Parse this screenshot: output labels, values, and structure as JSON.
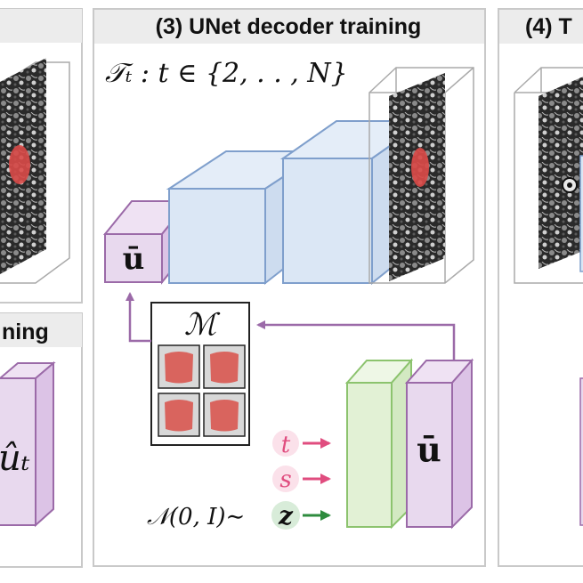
{
  "panels": {
    "left_bottom_header": "ning",
    "center_header": "(3) UNet decoder training",
    "right_header": "(4) T"
  },
  "math": {
    "task_set": "𝒯ₜ : t ∈ {2, . . , N}",
    "u_bar": "ū",
    "memory": "ℳ",
    "u_hat": "ûₜ",
    "t": "t",
    "s": "s",
    "z": "z",
    "noise": "𝒩(0, I)∼"
  },
  "colors": {
    "blue_face": "#dbe7f5",
    "blue_edge": "#7f9fcc",
    "purple_face": "#e8d9ee",
    "purple_edge": "#9b6aa8",
    "green_face": "#e2f1d5",
    "green_edge": "#8cc36e",
    "t_color": "#e04d7f",
    "s_color": "#e04d7f",
    "z_color": "#2e8b3e",
    "arrow_purple": "#9b6aa8",
    "tumor": "#d94a48"
  }
}
